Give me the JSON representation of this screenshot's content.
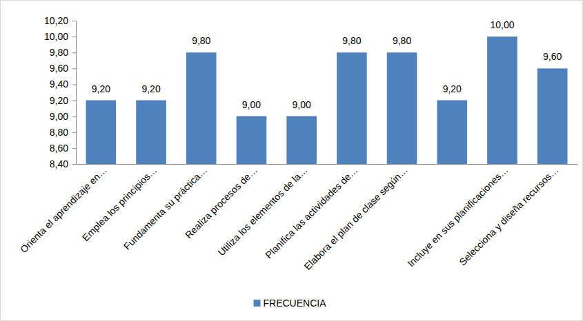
{
  "chart_data": {
    "type": "bar",
    "categories": [
      "Orienta el aprendizaje en…",
      "Emplea los principios…",
      "Fundamenta su práctica…",
      "Realiza procesos de…",
      "Utiliza los  elementos de la…",
      "Planifica las actividades de…",
      "Elabora el plan de clase según…",
      null,
      "Incluye en sus planificaciones…",
      "Selecciona y diseña recursos…"
    ],
    "series": [
      {
        "name": "FRECUENCIA",
        "color": "#4f81bd",
        "values": [
          9.2,
          9.2,
          9.8,
          9.0,
          9.0,
          9.8,
          9.8,
          9.2,
          10.0,
          9.6
        ],
        "value_labels": [
          "9,20",
          "9,20",
          "9,80",
          "9,00",
          "9,00",
          "9,80",
          "9,80",
          "9,20",
          "10,00",
          "9,60"
        ]
      }
    ],
    "ylim": [
      8.4,
      10.2
    ],
    "yticks": [
      {
        "value": 8.4,
        "label": "8,40"
      },
      {
        "value": 8.6,
        "label": "8,60"
      },
      {
        "value": 8.8,
        "label": "8,80"
      },
      {
        "value": 9.0,
        "label": "9,00"
      },
      {
        "value": 9.2,
        "label": "9,20"
      },
      {
        "value": 9.4,
        "label": "9,40"
      },
      {
        "value": 9.6,
        "label": "9,60"
      },
      {
        "value": 9.8,
        "label": "9,80"
      },
      {
        "value": 10.0,
        "label": "10,00"
      },
      {
        "value": 10.2,
        "label": "10,20"
      }
    ],
    "grid": false,
    "legend": "bottom",
    "data_labels": true
  }
}
